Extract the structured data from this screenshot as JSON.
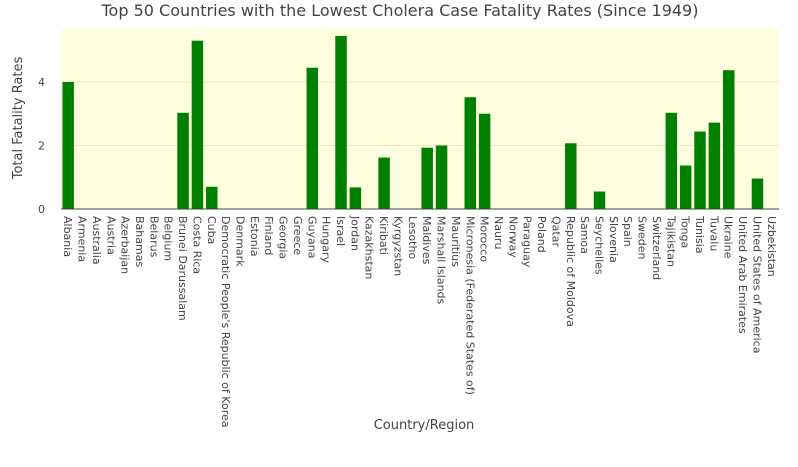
{
  "chart_data": {
    "type": "bar",
    "title": "Top 50 Countries with the Lowest Cholera Case Fatality Rates (Since 1949)",
    "xlabel": "Country/Region",
    "ylabel": "Total Fatality Rates",
    "ylim": [
      0,
      5.7
    ],
    "yticks": [
      0,
      2,
      4
    ],
    "grid": true,
    "legend": "none",
    "colors": {
      "bar": "#008000",
      "plot_bg": "#ffffe0",
      "grid": "#eaeaca"
    },
    "categories": [
      "Albania",
      "Armenia",
      "Australia",
      "Austria",
      "Azerbaijan",
      "Bahamas",
      "Belarus",
      "Belgium",
      "Brunei Darussalam",
      "Costa Rica",
      "Cuba",
      "Democratic People's Republic of Korea",
      "Denmark",
      "Estonia",
      "Finland",
      "Georgia",
      "Greece",
      "Guyana",
      "Hungary",
      "Israel",
      "Jordan",
      "Kazakhstan",
      "Kiribati",
      "Kyrgyzstan",
      "Lesotho",
      "Maldives",
      "Marshall Islands",
      "Mauritius",
      "Micronesia (Federated States of)",
      "Morocco",
      "Nauru",
      "Norway",
      "Paraguay",
      "Poland",
      "Qatar",
      "Republic of Moldova",
      "Samoa",
      "Seychelles",
      "Slovenia",
      "Spain",
      "Sweden",
      "Switzerland",
      "Tajikistan",
      "Tonga",
      "Tunisia",
      "Tuvalu",
      "Ukraine",
      "United Arab Emirates",
      "United States of America",
      "Uzbekistan"
    ],
    "values": [
      4.0,
      0,
      0,
      0,
      0,
      0,
      0,
      0,
      3.03,
      5.3,
      0.7,
      0,
      0,
      0,
      0,
      0,
      0,
      4.45,
      0,
      5.45,
      0.68,
      0,
      1.62,
      0,
      0,
      1.93,
      2.0,
      0,
      3.52,
      3.0,
      0,
      0,
      0,
      0,
      0,
      2.07,
      0,
      0.55,
      0,
      0,
      0,
      0,
      3.03,
      1.37,
      2.44,
      2.72,
      4.37,
      0,
      0.96,
      0
    ]
  }
}
